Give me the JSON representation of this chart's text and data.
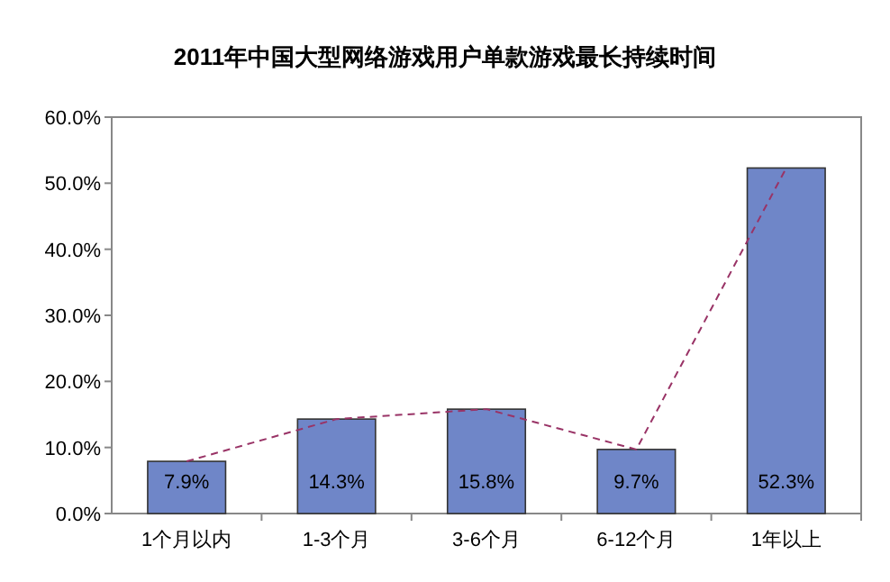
{
  "chart_data": {
    "type": "bar",
    "title": "2011年中国大型网络游戏用户单款游戏最长持续时间",
    "categories": [
      "1个月以内",
      "1-3个月",
      "3-6个月",
      "6-12个月",
      "1年以上"
    ],
    "ylim": [
      0,
      60
    ],
    "yticks": [
      {
        "value": 0,
        "label": "0.0%"
      },
      {
        "value": 10,
        "label": "10.0%"
      },
      {
        "value": 20,
        "label": "20.0%"
      },
      {
        "value": 30,
        "label": "30.0%"
      },
      {
        "value": 40,
        "label": "40.0%"
      },
      {
        "value": 50,
        "label": "50.0%"
      },
      {
        "value": 60,
        "label": "60.0%"
      }
    ],
    "grid": false,
    "series": [
      {
        "color": "#6f86c8",
        "values": [
          7.9,
          14.3,
          15.8,
          9.7,
          52.3
        ],
        "value_labels": [
          "7.9%",
          "14.3%",
          "15.8%",
          "9.7%",
          "52.3%"
        ]
      },
      {
        "type": "line",
        "color": "#993366",
        "line_style": "dashed",
        "values": [
          7.9,
          14.3,
          15.8,
          9.7,
          52.3
        ]
      }
    ]
  }
}
